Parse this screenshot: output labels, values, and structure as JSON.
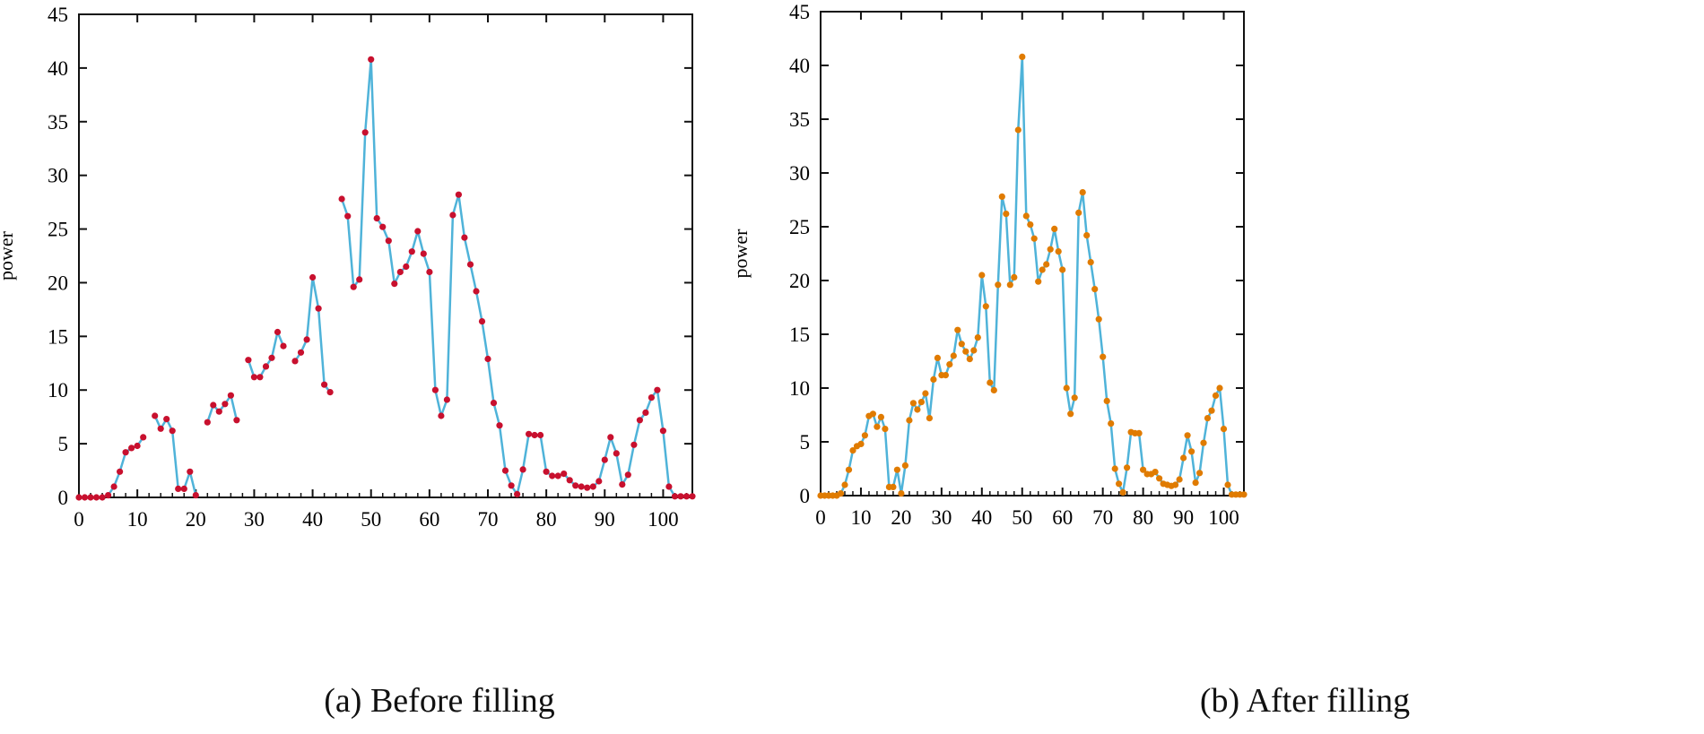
{
  "chart_data": [
    {
      "type": "line",
      "title": "",
      "caption": "(a) Before filling",
      "xlabel": "",
      "ylabel": "power",
      "xlim": [
        0,
        105
      ],
      "ylim": [
        0,
        45
      ],
      "xticks": [
        0,
        10,
        20,
        30,
        40,
        50,
        60,
        70,
        80,
        90,
        100
      ],
      "yticks": [
        0,
        5,
        10,
        15,
        20,
        25,
        30,
        35,
        40,
        45
      ],
      "grid": false,
      "line_color": "#4fb3d9",
      "marker_color": "#c8102e",
      "series": [
        {
          "name": "power",
          "x": [
            0,
            1,
            2,
            3,
            4,
            5,
            6,
            7,
            8,
            9,
            10,
            11,
            12,
            13,
            14,
            15,
            16,
            17,
            18,
            19,
            20,
            21,
            22,
            23,
            24,
            25,
            26,
            27,
            28,
            29,
            30,
            31,
            32,
            33,
            34,
            35,
            36,
            37,
            38,
            39,
            40,
            41,
            42,
            43,
            44,
            45,
            46,
            47,
            48,
            49,
            50,
            51,
            52,
            53,
            54,
            55,
            56,
            57,
            58,
            59,
            60,
            61,
            62,
            63,
            64,
            65,
            66,
            67,
            68,
            69,
            70,
            71,
            72,
            73,
            74,
            75,
            76,
            77,
            78,
            79,
            80,
            81,
            82,
            83,
            84,
            85,
            86,
            87,
            88,
            89,
            90,
            91,
            92,
            93,
            94,
            95,
            96,
            97,
            98,
            99,
            100,
            101,
            102,
            103,
            104,
            105
          ],
          "values": [
            0,
            0,
            0,
            0,
            0,
            0.2,
            1,
            2.4,
            4.2,
            4.6,
            4.8,
            5.6,
            null,
            7.6,
            6.4,
            7.3,
            6.2,
            0.8,
            0.8,
            2.4,
            0.2,
            null,
            7,
            8.6,
            8,
            8.7,
            9.5,
            7.2,
            null,
            12.8,
            11.2,
            11.2,
            12.2,
            13,
            15.4,
            14.1,
            null,
            12.7,
            13.5,
            14.7,
            20.5,
            17.6,
            10.5,
            9.8,
            null,
            27.8,
            26.2,
            19.6,
            20.3,
            34,
            40.8,
            26,
            25.2,
            23.9,
            19.9,
            21,
            21.5,
            22.9,
            24.8,
            22.7,
            21,
            10,
            7.6,
            9.1,
            26.3,
            28.2,
            24.2,
            21.7,
            19.2,
            16.4,
            12.9,
            8.8,
            6.7,
            2.5,
            1.1,
            0.3,
            2.6,
            5.9,
            5.8,
            5.8,
            2.4,
            2,
            2,
            2.2,
            1.6,
            1.1,
            1,
            0.9,
            1,
            1.5,
            3.5,
            5.6,
            4.1,
            1.2,
            2.1,
            4.9,
            7.2,
            7.9,
            9.3,
            10,
            6.2,
            1,
            0.1,
            0.1,
            0.1,
            0.1
          ]
        }
      ]
    },
    {
      "type": "line",
      "title": "",
      "caption": "(b) After filling",
      "xlabel": "",
      "ylabel": "power",
      "xlim": [
        0,
        105
      ],
      "ylim": [
        0,
        45
      ],
      "xticks": [
        0,
        10,
        20,
        30,
        40,
        50,
        60,
        70,
        80,
        90,
        100
      ],
      "yticks": [
        0,
        5,
        10,
        15,
        20,
        25,
        30,
        35,
        40,
        45
      ],
      "grid": false,
      "line_color": "#4fb3d9",
      "marker_color": "#e07b00",
      "series": [
        {
          "name": "power",
          "x": [
            0,
            1,
            2,
            3,
            4,
            5,
            6,
            7,
            8,
            9,
            10,
            11,
            12,
            13,
            14,
            15,
            16,
            17,
            18,
            19,
            20,
            21,
            22,
            23,
            24,
            25,
            26,
            27,
            28,
            29,
            30,
            31,
            32,
            33,
            34,
            35,
            36,
            37,
            38,
            39,
            40,
            41,
            42,
            43,
            44,
            45,
            46,
            47,
            48,
            49,
            50,
            51,
            52,
            53,
            54,
            55,
            56,
            57,
            58,
            59,
            60,
            61,
            62,
            63,
            64,
            65,
            66,
            67,
            68,
            69,
            70,
            71,
            72,
            73,
            74,
            75,
            76,
            77,
            78,
            79,
            80,
            81,
            82,
            83,
            84,
            85,
            86,
            87,
            88,
            89,
            90,
            91,
            92,
            93,
            94,
            95,
            96,
            97,
            98,
            99,
            100,
            101,
            102,
            103,
            104,
            105
          ],
          "values": [
            0,
            0,
            0,
            0,
            0,
            0.2,
            1,
            2.4,
            4.2,
            4.6,
            4.8,
            5.6,
            7.4,
            7.6,
            6.4,
            7.3,
            6.2,
            0.8,
            0.8,
            2.4,
            0.2,
            2.8,
            7,
            8.6,
            8,
            8.7,
            9.5,
            7.2,
            10.8,
            12.8,
            11.2,
            11.2,
            12.2,
            13,
            15.4,
            14.1,
            13.4,
            12.7,
            13.5,
            14.7,
            20.5,
            17.6,
            10.5,
            9.8,
            19.6,
            27.8,
            26.2,
            19.6,
            20.3,
            34,
            40.8,
            26,
            25.2,
            23.9,
            19.9,
            21,
            21.5,
            22.9,
            24.8,
            22.7,
            21,
            10,
            7.6,
            9.1,
            26.3,
            28.2,
            24.2,
            21.7,
            19.2,
            16.4,
            12.9,
            8.8,
            6.7,
            2.5,
            1.1,
            0.3,
            2.6,
            5.9,
            5.8,
            5.8,
            2.4,
            2,
            2,
            2.2,
            1.6,
            1.1,
            1,
            0.9,
            1,
            1.5,
            3.5,
            5.6,
            4.1,
            1.2,
            2.1,
            4.9,
            7.2,
            7.9,
            9.3,
            10,
            6.2,
            1,
            0.1,
            0.1,
            0.1,
            0.1
          ]
        }
      ]
    }
  ]
}
